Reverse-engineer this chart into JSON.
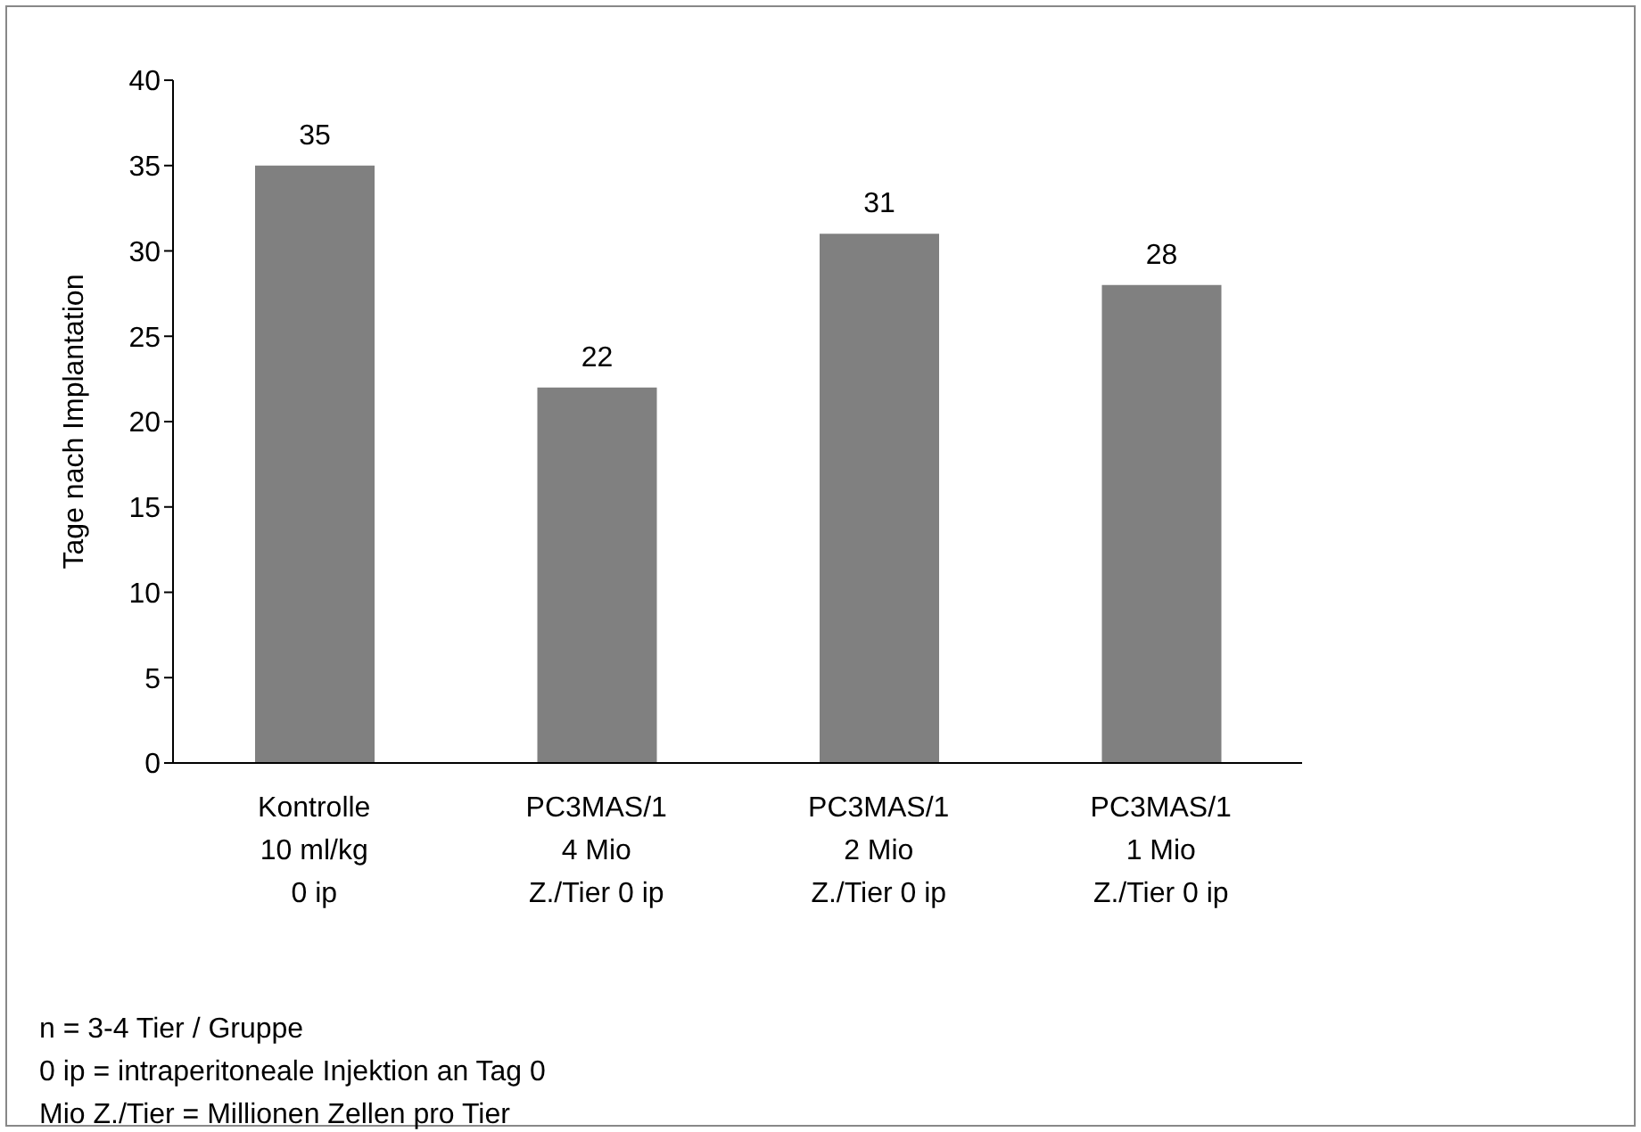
{
  "chart_data": {
    "type": "bar",
    "ylabel": "Tage nach Implantation",
    "categories": [
      "Kontrolle\n10 ml/kg\n0 ip",
      "PC3MAS/1\n4 Mio\nZ./Tier 0 ip",
      "PC3MAS/1\n2 Mio\nZ./Tier 0 ip",
      "PC3MAS/1\n1 Mio\nZ./Tier 0 ip"
    ],
    "values": [
      35,
      22,
      31,
      28
    ],
    "color": "#808080",
    "ylim": [
      0,
      40
    ],
    "yticks": [
      0,
      5,
      10,
      15,
      20,
      25,
      30,
      35,
      40
    ],
    "data_labels": true,
    "annotations": [
      "n = 3-4 Tier / Gruppe",
      "0 ip = intraperitoneale Injektion an Tag 0",
      "Mio Z./Tier = Millionen Zellen pro Tier"
    ]
  }
}
